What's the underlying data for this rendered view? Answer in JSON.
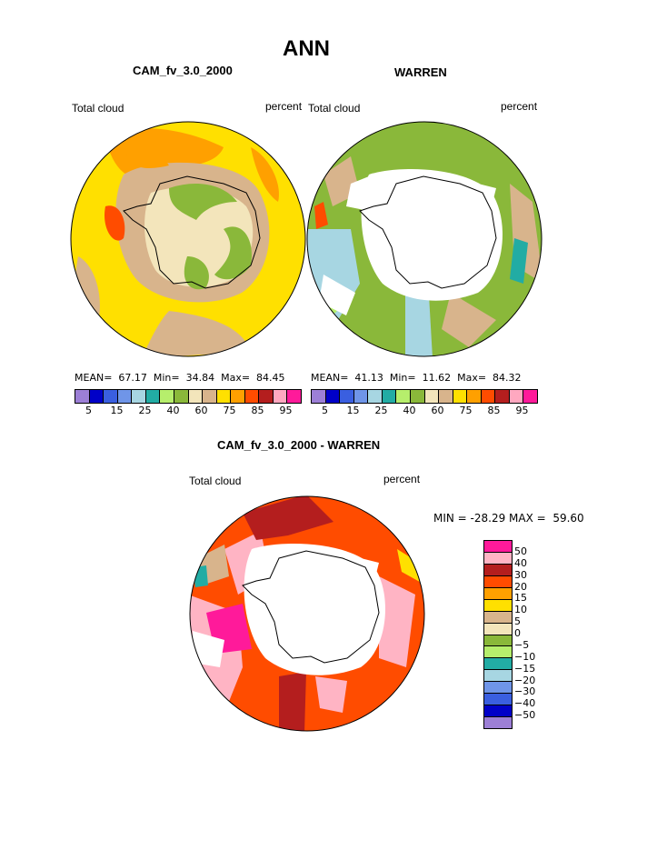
{
  "page": {
    "title": "ANN",
    "diff_title": "CAM_fv_3.0_2000 - WARREN"
  },
  "panels": [
    {
      "subtitle": "CAM_fv_3.0_2000",
      "left_label": "Total cloud",
      "right_label": "percent",
      "stats": {
        "mean": "67.17",
        "min": "34.84",
        "max": "84.45"
      },
      "stats_text": "MEAN=  67.17  Min=  34.84  Max=  84.45"
    },
    {
      "subtitle": "WARREN",
      "left_label": "Total cloud",
      "right_label": "percent",
      "stats": {
        "mean": "41.13",
        "min": "11.62",
        "max": "84.32"
      },
      "stats_text": "MEAN=  41.13  Min=  11.62  Max=  84.32"
    }
  ],
  "diff_panel": {
    "left_label": "Total cloud",
    "right_label": "percent",
    "stats": {
      "min": "-28.29",
      "max": "59.60"
    },
    "stats_text": "MIN = -28.29 MAX =  59.60"
  },
  "colorbar": {
    "colors": [
      "#9c7fd6",
      "#0000c8",
      "#3a5fe0",
      "#6f95e8",
      "#a7d6e2",
      "#22aca4",
      "#b6ee6c",
      "#8ab83a",
      "#f3e5bb",
      "#d8b48c",
      "#ffe000",
      "#ffa000",
      "#ff4c00",
      "#b41e1e",
      "#ffa8c0",
      "#ff1a9a"
    ],
    "tick_labels": [
      "5",
      "15",
      "25",
      "40",
      "60",
      "75",
      "85",
      "95"
    ]
  },
  "diff_colorbar": {
    "colors": [
      "#ff1a9a",
      "#ffb4c4",
      "#b41e1e",
      "#ff4c00",
      "#ffa000",
      "#ffe000",
      "#d8b48c",
      "#f3e5bb",
      "#8ab83a",
      "#b6ee6c",
      "#22aca4",
      "#a7d6e2",
      "#6f95e8",
      "#3a5fe0",
      "#0000c8",
      "#9c7fd6"
    ],
    "labels": [
      "50",
      "40",
      "30",
      "20",
      "15",
      "10",
      "5",
      "0",
      "−5",
      "−10",
      "−15",
      "−20",
      "−30",
      "−40",
      "−50"
    ]
  }
}
